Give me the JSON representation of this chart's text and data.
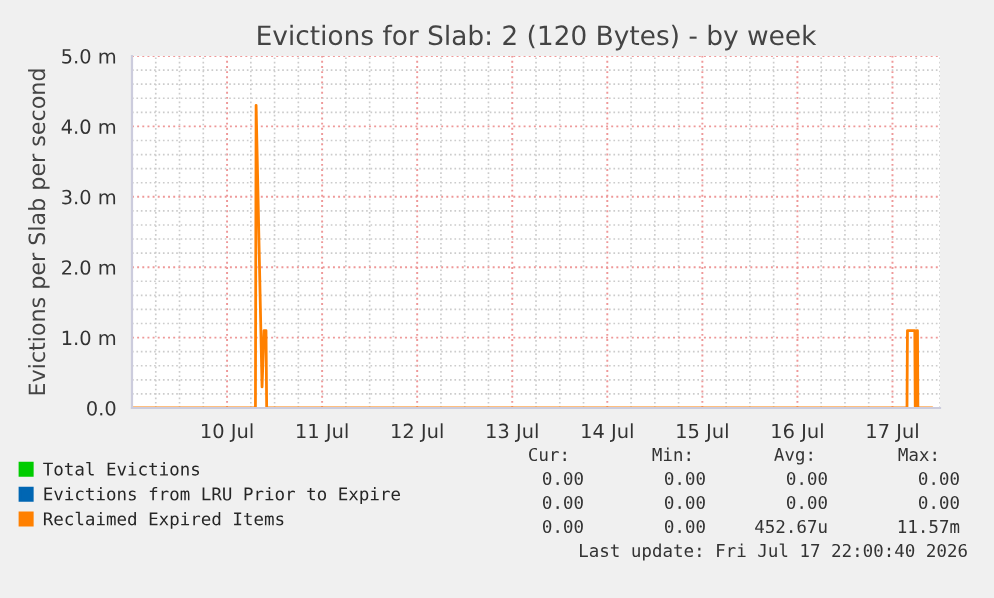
{
  "chart_data": {
    "type": "line",
    "title": "Evictions for Slab: 2 (120 Bytes) - by week",
    "ylabel": "Evictions per Slab per second",
    "xlim": [
      "2026-07-09T12:00",
      "2026-07-18T00:00"
    ],
    "ylim": [
      0,
      5
    ],
    "xticks": [
      {
        "value": "2026-07-10T12:00",
        "label": "10 Jul"
      },
      {
        "value": "2026-07-11T12:00",
        "label": "11 Jul"
      },
      {
        "value": "2026-07-12T12:00",
        "label": "12 Jul"
      },
      {
        "value": "2026-07-13T12:00",
        "label": "13 Jul"
      },
      {
        "value": "2026-07-14T12:00",
        "label": "14 Jul"
      },
      {
        "value": "2026-07-15T12:00",
        "label": "15 Jul"
      },
      {
        "value": "2026-07-16T12:00",
        "label": "16 Jul"
      },
      {
        "value": "2026-07-17T12:00",
        "label": "17 Jul"
      }
    ],
    "yticks": [
      {
        "value": 0,
        "label": "0.0"
      },
      {
        "value": 1,
        "label": "1.0 m"
      },
      {
        "value": 2,
        "label": "2.0 m"
      },
      {
        "value": 3,
        "label": "3.0 m"
      },
      {
        "value": 4,
        "label": "4.0 m"
      },
      {
        "value": 5,
        "label": "5.0 m"
      }
    ],
    "grid": true,
    "legend": "bottom left",
    "series": [
      {
        "name": "Total Evictions",
        "color": "#00cc00"
      },
      {
        "name": "Evictions from LRU Prior to Expire",
        "color": "#0066b3"
      },
      {
        "name": "Reclaimed Expired Items",
        "color": "#ff8000",
        "x": [
          "2026-07-09T12:00",
          "2026-07-10T19:10",
          "2026-07-10T19:20",
          "2026-07-10T20:50",
          "2026-07-10T21:20",
          "2026-07-10T21:50",
          "2026-07-10T22:00",
          "2026-07-17T15:40",
          "2026-07-17T15:47",
          "2026-07-17T17:38",
          "2026-07-17T17:45",
          "2026-07-17T18:05",
          "2026-07-17T18:10",
          "2026-07-17T18:19",
          "2026-07-17T18:25",
          "2026-07-17T22:00"
        ],
        "values": [
          0,
          0,
          4.3,
          0.3,
          1.1,
          1.1,
          0,
          0,
          1.1,
          1.1,
          0,
          0,
          1.1,
          1.1,
          0,
          0
        ]
      }
    ],
    "annotations": [
      "Cur:        Min:         Avg:          Max:",
      "0.00        0.00         0.00          0.00",
      "0.00        0.00         0.00          0.00",
      "0.00        0.00      452.67u        11.57m",
      "Last update: Fri Jul 17 22:00:40 2026"
    ]
  }
}
